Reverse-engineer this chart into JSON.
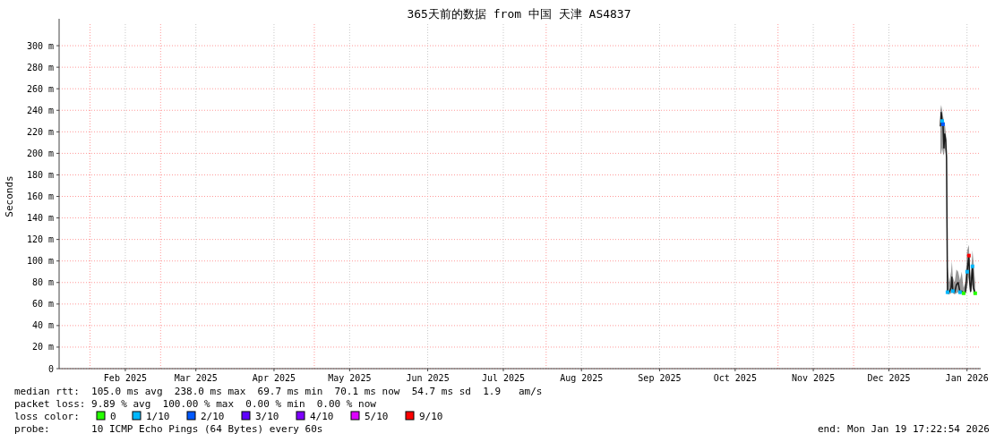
{
  "chart_data": {
    "type": "line",
    "title": "365天前的数据 from 中国 天津 AS4837",
    "ylabel": "Seconds",
    "xlim": [
      "2025-01-19T17:22",
      "2026-01-19T17:22"
    ],
    "xticks": [
      {
        "value": "2025-02-15",
        "label": "Feb 2025"
      },
      {
        "value": "2025-03-15",
        "label": "Mar 2025"
      },
      {
        "value": "2025-04-15",
        "label": "Apr 2025"
      },
      {
        "value": "2025-05-15",
        "label": "May 2025"
      },
      {
        "value": "2025-06-15",
        "label": "Jun 2025"
      },
      {
        "value": "2025-07-15",
        "label": "Jul 2025"
      },
      {
        "value": "2025-08-15",
        "label": "Aug 2025"
      },
      {
        "value": "2025-09-15",
        "label": "Sep 2025"
      },
      {
        "value": "2025-10-15",
        "label": "Oct 2025"
      },
      {
        "value": "2025-11-15",
        "label": "Nov 2025"
      },
      {
        "value": "2025-12-15",
        "label": "Dec 2025"
      },
      {
        "value": "2026-01-15",
        "label": "Jan 2026"
      }
    ],
    "ylim": [
      0,
      320
    ],
    "yticks": [
      0,
      {
        "value": 20,
        "label": "20 m"
      },
      {
        "value": 40,
        "label": "40 m"
      },
      {
        "value": 60,
        "label": "60 m"
      },
      {
        "value": 80,
        "label": "80 m"
      },
      {
        "value": 100,
        "label": "100 m"
      },
      {
        "value": 120,
        "label": "120 m"
      },
      {
        "value": 140,
        "label": "140 m"
      },
      {
        "value": 160,
        "label": "160 m"
      },
      {
        "value": 180,
        "label": "180 m"
      },
      {
        "value": 200,
        "label": "200 m"
      },
      {
        "value": 220,
        "label": "220 m"
      },
      {
        "value": 240,
        "label": "240 m"
      },
      {
        "value": 260,
        "label": "260 m"
      },
      {
        "value": 280,
        "label": "280 m"
      },
      {
        "value": 300,
        "label": "300 m"
      }
    ],
    "grid": true,
    "legend": "bottom",
    "legend_title": "loss color:",
    "ref_lines": [
      {
        "axis": "x",
        "value": "2025-02-01",
        "color": "#ff9999",
        "line_style": "dotted"
      },
      {
        "axis": "x",
        "value": "2025-03-01",
        "color": "#ff9999",
        "line_style": "dotted"
      },
      {
        "axis": "x",
        "value": "2025-05-01",
        "color": "#ff9999",
        "line_style": "dotted"
      },
      {
        "axis": "x",
        "value": "2025-08-01",
        "color": "#ff9999",
        "line_style": "dotted"
      },
      {
        "axis": "x",
        "value": "2025-11-01",
        "color": "#ff9999",
        "line_style": "dotted"
      },
      {
        "axis": "x",
        "value": "2025-12-01",
        "color": "#ff9999",
        "line_style": "dotted"
      }
    ],
    "series": [
      {
        "color": "#1a1a1a",
        "x": [
          "2026-01-04T10:00",
          "2026-01-04T18:00",
          "2026-01-05T03:00",
          "2026-01-05T11:00",
          "2026-01-05T20:00",
          "2026-01-06T04:00",
          "2026-01-06T13:00",
          "2026-01-06T21:00",
          "2026-01-07T06:00",
          "2026-01-07T23:00",
          "2026-01-08T16:00",
          "2026-01-09T00:00",
          "2026-01-09T09:00",
          "2026-01-10T02:00",
          "2026-01-10T19:00",
          "2026-01-11T12:00",
          "2026-01-12T05:00",
          "2026-01-12T22:00",
          "2026-01-13T15:00",
          "2026-01-14T08:00",
          "2026-01-15T01:00",
          "2026-01-15T18:00",
          "2026-01-16T02:00",
          "2026-01-16T11:00",
          "2026-01-17T04:00",
          "2026-01-17T13:00",
          "2026-01-18T06:00"
        ],
        "values": [
          225,
          238,
          230,
          227,
          205,
          218,
          212,
          196,
          71,
          71,
          75,
          85,
          72,
          71,
          78,
          80,
          71,
          72,
          70,
          71,
          90,
          105,
          80,
          72,
          95,
          75,
          70
        ],
        "lower": [
          200,
          200,
          205,
          200,
          198,
          205,
          200,
          194,
          69,
          69,
          70,
          72,
          70,
          69,
          70,
          71,
          69,
          70,
          69,
          69,
          75,
          85,
          72,
          70,
          78,
          70,
          69
        ],
        "upper": [
          240,
          245,
          240,
          235,
          230,
          228,
          220,
          212,
          95,
          80,
          90,
          100,
          85,
          80,
          92,
          90,
          82,
          90,
          75,
          80,
          110,
          115,
          95,
          85,
          110,
          100,
          80
        ]
      },
      {
        "type": "scatter",
        "marker": "square",
        "name": "0",
        "color": "#26ff00",
        "x": [
          "2026-01-13T15:00",
          "2026-01-18T06:00"
        ],
        "values": [
          70,
          70
        ]
      },
      {
        "type": "scatter",
        "marker": "square",
        "name": "1/10",
        "color": "#00b8ff",
        "x": [
          "2026-01-05T03:00",
          "2026-01-07T06:00",
          "2026-01-09T09:00",
          "2026-01-12T05:00",
          "2026-01-15T01:00",
          "2026-01-17T04:00"
        ],
        "values": [
          230,
          71,
          72,
          71,
          90,
          95
        ]
      },
      {
        "type": "scatter",
        "marker": "square",
        "name": "2/10",
        "color": "#0059ff",
        "x": [
          "2026-01-05T11:00"
        ],
        "values": [
          227
        ]
      },
      {
        "type": "scatter",
        "name": "3/10",
        "color": "#5e00ff"
      },
      {
        "type": "scatter",
        "name": "4/10",
        "color": "#7e00ff"
      },
      {
        "type": "scatter",
        "name": "5/10",
        "color": "#dd00ff"
      },
      {
        "type": "scatter",
        "marker": "square",
        "name": "9/10",
        "color": "#ff0000",
        "x": [
          "2026-01-15T18:00"
        ],
        "values": [
          105
        ]
      }
    ],
    "annotations": [
      "median rtt:  105.0 ms avg  238.0 ms max  69.7 ms min  70.1 ms now  54.7 ms sd  1.9   am/s",
      "packet loss: 9.89 % avg  100.00 % max  0.00 % min  0.00 % now",
      "probe:       10 ICMP Echo Pings (64 Bytes) every 60s",
      "end: Mon Jan 19 17:22:54 2026"
    ]
  }
}
